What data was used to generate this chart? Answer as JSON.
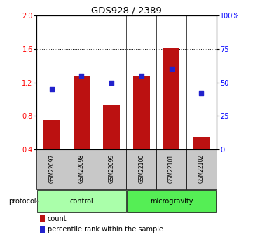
{
  "title": "GDS928 / 2389",
  "samples": [
    "GSM22097",
    "GSM22098",
    "GSM22099",
    "GSM22100",
    "GSM22101",
    "GSM22102"
  ],
  "bar_values": [
    0.75,
    1.27,
    0.93,
    1.27,
    1.62,
    0.55
  ],
  "scatter_values": [
    45,
    55,
    50,
    55,
    60,
    42
  ],
  "bar_color": "#BB1111",
  "scatter_color": "#2222CC",
  "left_ylim": [
    0.4,
    2.0
  ],
  "right_ylim": [
    0,
    100
  ],
  "left_yticks": [
    0.4,
    0.8,
    1.2,
    1.6,
    2.0
  ],
  "right_yticks": [
    0,
    25,
    50,
    75,
    100
  ],
  "right_yticklabels": [
    "0",
    "25",
    "50",
    "75",
    "100%"
  ],
  "groups": [
    {
      "label": "control",
      "n": 3,
      "color": "#AAFFAA"
    },
    {
      "label": "microgravity",
      "n": 3,
      "color": "#55EE55"
    }
  ],
  "protocol_label": "protocol",
  "legend_bar_label": "count",
  "legend_scatter_label": "percentile rank within the sample",
  "background_color": "#FFFFFF",
  "sample_box_color": "#C8C8C8"
}
